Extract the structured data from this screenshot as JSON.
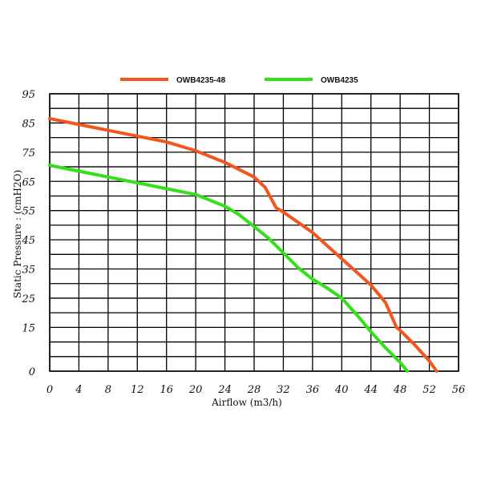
{
  "chart_data": {
    "type": "line",
    "xlabel": "Airflow (m3/h)",
    "ylabel": "Static Pressure : (cmH2O)",
    "xlim": [
      0,
      56
    ],
    "ylim": [
      0,
      95
    ],
    "x_ticks": [
      0,
      4,
      8,
      12,
      16,
      20,
      24,
      28,
      32,
      36,
      40,
      44,
      48,
      52,
      56
    ],
    "y_ticks": [
      0,
      15,
      25,
      35,
      45,
      55,
      65,
      75,
      85,
      95
    ],
    "grid": true,
    "legend": "top",
    "series": [
      {
        "name": "OWB4235-48",
        "color": "#f2561d",
        "x": [
          0,
          4,
          8,
          12,
          16,
          20,
          24,
          28,
          29.5,
          31,
          32,
          36,
          40,
          44,
          46,
          47.5,
          48,
          50,
          52,
          53
        ],
        "y": [
          86.5,
          84.5,
          82.5,
          80.5,
          78.5,
          75.5,
          71.5,
          66.5,
          63,
          56,
          54.5,
          47.5,
          38.5,
          29.5,
          23.5,
          15,
          14,
          9,
          3.5,
          0
        ]
      },
      {
        "name": "OWB4235",
        "color": "#33e01a",
        "x": [
          0,
          4,
          8,
          12,
          16,
          20,
          22,
          24,
          26,
          28,
          30,
          32,
          34,
          36,
          38,
          40,
          42,
          44,
          46,
          48,
          49
        ],
        "y": [
          70.5,
          68.5,
          66.5,
          64.5,
          62.5,
          60.5,
          58.5,
          56.5,
          53.5,
          49.5,
          45.5,
          40.5,
          35.5,
          31.5,
          28.5,
          25,
          19.5,
          13.5,
          8,
          3,
          0
        ]
      }
    ]
  }
}
